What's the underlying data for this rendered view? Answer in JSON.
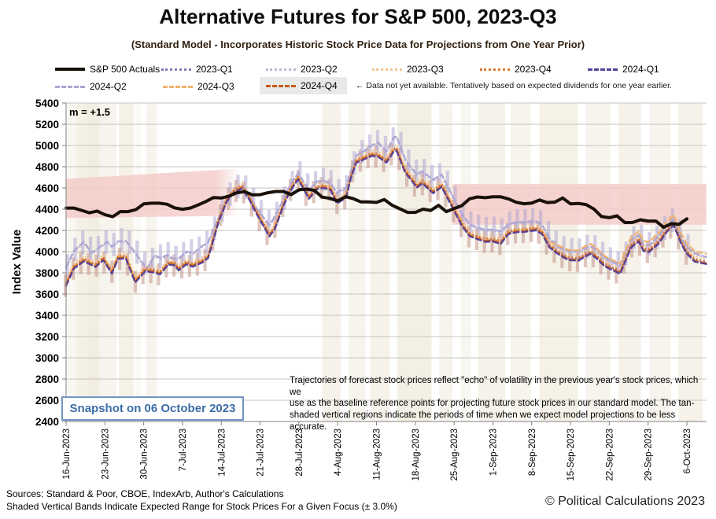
{
  "title": "Alternative Futures for S&P 500, 2023-Q3",
  "subtitle": "(Standard Model - Incorporates Historic Stock Price Data for Projections from One Year Prior)",
  "legend": {
    "items": [
      {
        "label": "S&P 500 Actuals",
        "style": "solid",
        "color": "#151005"
      },
      {
        "label": "2023-Q1",
        "style": "dotted",
        "color": "#8a77b4"
      },
      {
        "label": "2023-Q2",
        "style": "dotted",
        "color": "#bdb8da"
      },
      {
        "label": "2023-Q3",
        "style": "dotted",
        "color": "#f2c493"
      },
      {
        "label": "2023-Q4",
        "style": "dotted",
        "color": "#dd7b33"
      },
      {
        "label": "2024-Q1",
        "style": "dashed",
        "color": "#54419b"
      },
      {
        "label": "2024-Q2",
        "style": "dashed",
        "color": "#aca6d5"
      },
      {
        "label": "2024-Q3",
        "style": "dashed",
        "color": "#f0b26e"
      },
      {
        "label": "2024-Q4",
        "style": "dashed",
        "color": "#c85c18",
        "highlighted": true
      }
    ],
    "note": "← Data not yet available.  Tentatively based on expected dividends for one year earlier."
  },
  "annotations": {
    "m_label": "m = +1.5",
    "snapshot": "Snapshot on 06 October 2023",
    "body_lines": [
      "Trajectories of forecast stock prices reflect \"echo\" of volatility in  the previous year's stock prices, which we",
      "use as the baseline reference points for projecting future stock prices in our standard model.   The tan-",
      "shaded vertical regions indicate the periods of time when we expect model projections to be less accurate."
    ]
  },
  "footer": {
    "sources": "Sources: Standard & Poor, CBOE, IndexArb, Author's Calculations",
    "bands_note": "Shaded Vertical Bands Indicate Expected Range for Stock Prices For a Given Focus (± 3.0%)",
    "copyright": "© Political Calculations 2023"
  },
  "colors": {
    "actuals": "#1a110a",
    "band": "#f3cdc9",
    "stripe": "#e5dbc4",
    "bar_tan": "#bf8c7d",
    "bar_lavender": "#a9a1d1",
    "grid": "#c6c4bf",
    "axis": "#7f7f7f"
  },
  "y_axis": {
    "label": "Index Value",
    "min": 2400,
    "max": 5400,
    "step": 200
  },
  "chart_data": {
    "type": "line",
    "title": "Alternative Futures for S&P 500, 2023-Q3",
    "ylabel": "Index Value",
    "ylim": [
      2400,
      5400
    ],
    "x_unit": "trading-day index from 16-Jun-2023, 5 per week, one tick per week",
    "x_tick_labels": [
      "16-Jun-2023",
      "23-Jun-2023",
      "30-Jun-2023",
      "7-Jul-2023",
      "14-Jul-2023",
      "21-Jul-2023",
      "28-Jul-2023",
      "4-Aug-2023",
      "11-Aug-2023",
      "18-Aug-2023",
      "25-Aug-2023",
      "1-Sep-2023",
      "8-Sep-2023",
      "15-Sep-2023",
      "22-Sep-2023",
      "29-Sep-2023",
      "6-Oct-2023"
    ],
    "actuals": {
      "name": "S&P 500 Actuals",
      "points": [
        [
          0,
          4410
        ],
        [
          1,
          4410
        ],
        [
          2,
          4389
        ],
        [
          3,
          4366
        ],
        [
          4,
          4382
        ],
        [
          5,
          4348
        ],
        [
          6,
          4329
        ],
        [
          7,
          4378
        ],
        [
          8,
          4377
        ],
        [
          9,
          4396
        ],
        [
          10,
          4450
        ],
        [
          11,
          4456
        ],
        [
          12,
          4456
        ],
        [
          13,
          4447
        ],
        [
          14,
          4412
        ],
        [
          15,
          4399
        ],
        [
          16,
          4410
        ],
        [
          17,
          4439
        ],
        [
          18,
          4472
        ],
        [
          19,
          4510
        ],
        [
          20,
          4505
        ],
        [
          21,
          4523
        ],
        [
          22,
          4555
        ],
        [
          23,
          4566
        ],
        [
          24,
          4535
        ],
        [
          25,
          4536
        ],
        [
          26,
          4555
        ],
        [
          27,
          4567
        ],
        [
          28,
          4567
        ],
        [
          29,
          4537
        ],
        [
          30,
          4582
        ],
        [
          31,
          4589
        ],
        [
          32,
          4577
        ],
        [
          33,
          4513
        ],
        [
          34,
          4502
        ],
        [
          35,
          4478
        ],
        [
          36,
          4518
        ],
        [
          37,
          4499
        ],
        [
          38,
          4468
        ],
        [
          39,
          4469
        ],
        [
          40,
          4464
        ],
        [
          41,
          4490
        ],
        [
          42,
          4438
        ],
        [
          43,
          4404
        ],
        [
          44,
          4370
        ],
        [
          45,
          4370
        ],
        [
          46,
          4400
        ],
        [
          47,
          4388
        ],
        [
          48,
          4436
        ],
        [
          49,
          4376
        ],
        [
          50,
          4406
        ],
        [
          51,
          4433
        ],
        [
          52,
          4498
        ],
        [
          53,
          4515
        ],
        [
          54,
          4508
        ],
        [
          55,
          4516
        ],
        [
          56,
          4516
        ],
        [
          57,
          4497
        ],
        [
          58,
          4465
        ],
        [
          59,
          4451
        ],
        [
          60,
          4457
        ],
        [
          61,
          4487
        ],
        [
          62,
          4462
        ],
        [
          63,
          4467
        ],
        [
          64,
          4505
        ],
        [
          65,
          4450
        ],
        [
          66,
          4454
        ],
        [
          67,
          4444
        ],
        [
          68,
          4402
        ],
        [
          69,
          4330
        ],
        [
          70,
          4320
        ],
        [
          71,
          4337
        ],
        [
          72,
          4274
        ],
        [
          73,
          4275
        ],
        [
          74,
          4300
        ],
        [
          75,
          4288
        ],
        [
          76,
          4288
        ],
        [
          77,
          4229
        ],
        [
          78,
          4264
        ],
        [
          79,
          4258
        ],
        [
          80,
          4309
        ]
      ]
    },
    "projection_shapes": {
      "lower": [
        [
          0,
          3688
        ],
        [
          1,
          3850
        ],
        [
          2.3,
          3918
        ],
        [
          3.8,
          3865
        ],
        [
          4.8,
          3930
        ],
        [
          5.9,
          3802
        ],
        [
          6.7,
          3942
        ],
        [
          7.7,
          3945
        ],
        [
          8.9,
          3718
        ],
        [
          10.2,
          3825
        ],
        [
          11.4,
          3812
        ],
        [
          12.1,
          3795
        ],
        [
          13.2,
          3888
        ],
        [
          14,
          3880
        ],
        [
          14.5,
          3832
        ],
        [
          15.5,
          3890
        ],
        [
          16.3,
          3868
        ],
        [
          17.5,
          3905
        ],
        [
          18.3,
          3948
        ],
        [
          19.7,
          4300
        ],
        [
          20.7,
          4480
        ],
        [
          21.7,
          4572
        ],
        [
          22.7,
          4605
        ],
        [
          23.6,
          4500
        ],
        [
          24.6,
          4358
        ],
        [
          26.2,
          4152
        ],
        [
          26.9,
          4222
        ],
        [
          28,
          4440
        ],
        [
          28.9,
          4582
        ],
        [
          29.9,
          4690
        ],
        [
          31.3,
          4508
        ],
        [
          32.3,
          4598
        ],
        [
          33.2,
          4610
        ],
        [
          34.1,
          4588
        ],
        [
          34.9,
          4462
        ],
        [
          36.1,
          4518
        ],
        [
          36.7,
          4705
        ],
        [
          37.4,
          4848
        ],
        [
          38.5,
          4882
        ],
        [
          39.4,
          4912
        ],
        [
          40.2,
          4902
        ],
        [
          41.3,
          4848
        ],
        [
          42.2,
          4950
        ],
        [
          42.6,
          4958
        ],
        [
          43.7,
          4752
        ],
        [
          44.5,
          4682
        ],
        [
          45.2,
          4612
        ],
        [
          45.9,
          4652
        ],
        [
          47.3,
          4560
        ],
        [
          48.4,
          4618
        ],
        [
          50,
          4395
        ],
        [
          51,
          4252
        ],
        [
          52,
          4155
        ],
        [
          53,
          4128
        ],
        [
          54,
          4102
        ],
        [
          55,
          4105
        ],
        [
          56,
          4082
        ],
        [
          57,
          4175
        ],
        [
          58,
          4192
        ],
        [
          59,
          4195
        ],
        [
          60.5,
          4210
        ],
        [
          61.3,
          4178
        ],
        [
          62.3,
          4048
        ],
        [
          63.3,
          3992
        ],
        [
          64.7,
          3930
        ],
        [
          66,
          3924
        ],
        [
          67,
          3968
        ],
        [
          67.6,
          3988
        ],
        [
          68.3,
          3950
        ],
        [
          69.4,
          3870
        ],
        [
          70.8,
          3822
        ],
        [
          71.4,
          3800
        ],
        [
          72.8,
          4048
        ],
        [
          73.8,
          4105
        ],
        [
          74.4,
          4015
        ],
        [
          75.1,
          4005
        ],
        [
          76.3,
          4080
        ],
        [
          77.4,
          4195
        ],
        [
          78.3,
          4258
        ],
        [
          79.3,
          4080
        ],
        [
          79.9,
          3998
        ],
        [
          81,
          3915
        ],
        [
          82.5,
          3892
        ]
      ],
      "upper": [
        [
          0,
          3855
        ],
        [
          1,
          4008
        ],
        [
          2.3,
          4092
        ],
        [
          3.3,
          3988
        ],
        [
          4.3,
          4042
        ],
        [
          5.3,
          4095
        ],
        [
          5.9,
          4048
        ],
        [
          6.7,
          4098
        ],
        [
          7.7,
          4102
        ],
        [
          8.9,
          3992
        ],
        [
          10.4,
          3838
        ],
        [
          11.4,
          3965
        ],
        [
          12.2,
          3940
        ],
        [
          13,
          3968
        ],
        [
          13.9,
          3932
        ],
        [
          14.6,
          3942
        ],
        [
          15.5,
          4000
        ],
        [
          16.5,
          3990
        ],
        [
          17.5,
          4052
        ],
        [
          18.3,
          4088
        ],
        [
          19.7,
          4330
        ],
        [
          20.7,
          4502
        ],
        [
          21.7,
          4592
        ],
        [
          22.7,
          4628
        ],
        [
          23.6,
          4532
        ],
        [
          24.6,
          4400
        ],
        [
          26.2,
          4252
        ],
        [
          26.9,
          4332
        ],
        [
          28,
          4492
        ],
        [
          28.9,
          4628
        ],
        [
          29.9,
          4740
        ],
        [
          31.3,
          4580
        ],
        [
          32.3,
          4660
        ],
        [
          33.2,
          4670
        ],
        [
          34.1,
          4642
        ],
        [
          34.9,
          4558
        ],
        [
          36.1,
          4602
        ],
        [
          36.7,
          4762
        ],
        [
          37.4,
          4905
        ],
        [
          38.5,
          4952
        ],
        [
          39.4,
          5002
        ],
        [
          40.2,
          5030
        ],
        [
          41.3,
          4945
        ],
        [
          42.2,
          5078
        ],
        [
          42.6,
          5085
        ],
        [
          43.7,
          4870
        ],
        [
          44.5,
          4790
        ],
        [
          45.2,
          4728
        ],
        [
          45.9,
          4758
        ],
        [
          47.3,
          4678
        ],
        [
          48.4,
          4728
        ],
        [
          50,
          4498
        ],
        [
          51,
          4358
        ],
        [
          52,
          4258
        ],
        [
          53,
          4228
        ],
        [
          54,
          4205
        ],
        [
          55,
          4208
        ],
        [
          56,
          4192
        ],
        [
          57,
          4258
        ],
        [
          58,
          4278
        ],
        [
          59,
          4278
        ],
        [
          60.5,
          4288
        ],
        [
          61.3,
          4258
        ],
        [
          62.3,
          4128
        ],
        [
          63.3,
          4048
        ],
        [
          64.7,
          4008
        ],
        [
          66,
          4004
        ],
        [
          67,
          4035
        ],
        [
          67.6,
          4048
        ],
        [
          68.3,
          4022
        ],
        [
          69.4,
          3942
        ],
        [
          70.8,
          3890
        ],
        [
          71.4,
          3868
        ],
        [
          72.8,
          4108
        ],
        [
          73.8,
          4160
        ],
        [
          74.4,
          4070
        ],
        [
          75.1,
          4060
        ],
        [
          76.3,
          4140
        ],
        [
          77.4,
          4250
        ],
        [
          78.3,
          4300
        ],
        [
          79.3,
          4130
        ],
        [
          79.9,
          4050
        ],
        [
          81,
          3985
        ],
        [
          82.5,
          3950
        ]
      ]
    },
    "projections": [
      {
        "name": "2023-Q2",
        "line": "dotted",
        "color": "#bdb8da",
        "ref": "upper",
        "offset": -12
      },
      {
        "name": "2023-Q3",
        "line": "dotted",
        "color": "#f2c493",
        "ref": "lower",
        "offset": 42
      },
      {
        "name": "2023-Q1",
        "line": "dotted",
        "color": "#8a77b4",
        "ref": "lower",
        "offset": 8
      },
      {
        "name": "2024-Q2",
        "line": "dashed",
        "color": "#aca6d5",
        "ref": "upper",
        "offset": 0
      },
      {
        "name": "2024-Q3",
        "line": "dashed",
        "color": "#f0b26e",
        "ref": "lower",
        "offset": 12,
        "late_offset": 75,
        "late_from": 61
      },
      {
        "name": "2023-Q4",
        "line": "dotted",
        "color": "#dd7b33",
        "ref": "lower",
        "offset": 20
      },
      {
        "name": "2024-Q4",
        "line": "dashed",
        "color": "#c85c18",
        "ref": "lower",
        "offset": 0
      },
      {
        "name": "2024-Q1",
        "line": "dashed",
        "color": "#54419b",
        "ref": "lower",
        "offset": -10
      }
    ],
    "forecast_bands": [
      {
        "d": [
          0,
          22.3
        ],
        "top": [
          4685,
          4782
        ],
        "bot": [
          4318,
          4338
        ],
        "fade": "right"
      },
      {
        "d": [
          49.8,
          82.5
        ],
        "top": [
          4638,
          4638
        ],
        "bot": [
          4253,
          4253
        ],
        "fade": "none"
      }
    ],
    "accuracy_stripes": [
      [
        0.2,
        1.3,
        0.45
      ],
      [
        1.3,
        2.7,
        0.8
      ],
      [
        2.7,
        4.3,
        1
      ],
      [
        4.3,
        6.5,
        0.6
      ],
      [
        6.8,
        8.7,
        0.8
      ],
      [
        8.9,
        9.6,
        0.35
      ],
      [
        10.3,
        11.7,
        0.6
      ],
      [
        33.0,
        35.4,
        0.7
      ],
      [
        36.4,
        38.6,
        0.6
      ],
      [
        39.2,
        41.7,
        0.7
      ],
      [
        42.7,
        47.1,
        0.9
      ],
      [
        48.1,
        49.8,
        0.6
      ],
      [
        50.9,
        52.2,
        0.5
      ],
      [
        53.1,
        56.6,
        0.7
      ],
      [
        57.3,
        59.9,
        0.6
      ],
      [
        61.0,
        66.0,
        0.8
      ],
      [
        67.0,
        70.1,
        0.6
      ],
      [
        71.2,
        74.1,
        0.7
      ],
      [
        75.2,
        77.9,
        0.6
      ],
      [
        78.9,
        82.0,
        0.7
      ]
    ],
    "error_bars": {
      "daily": true,
      "tan_half": 102,
      "lavender_half": 100
    }
  }
}
